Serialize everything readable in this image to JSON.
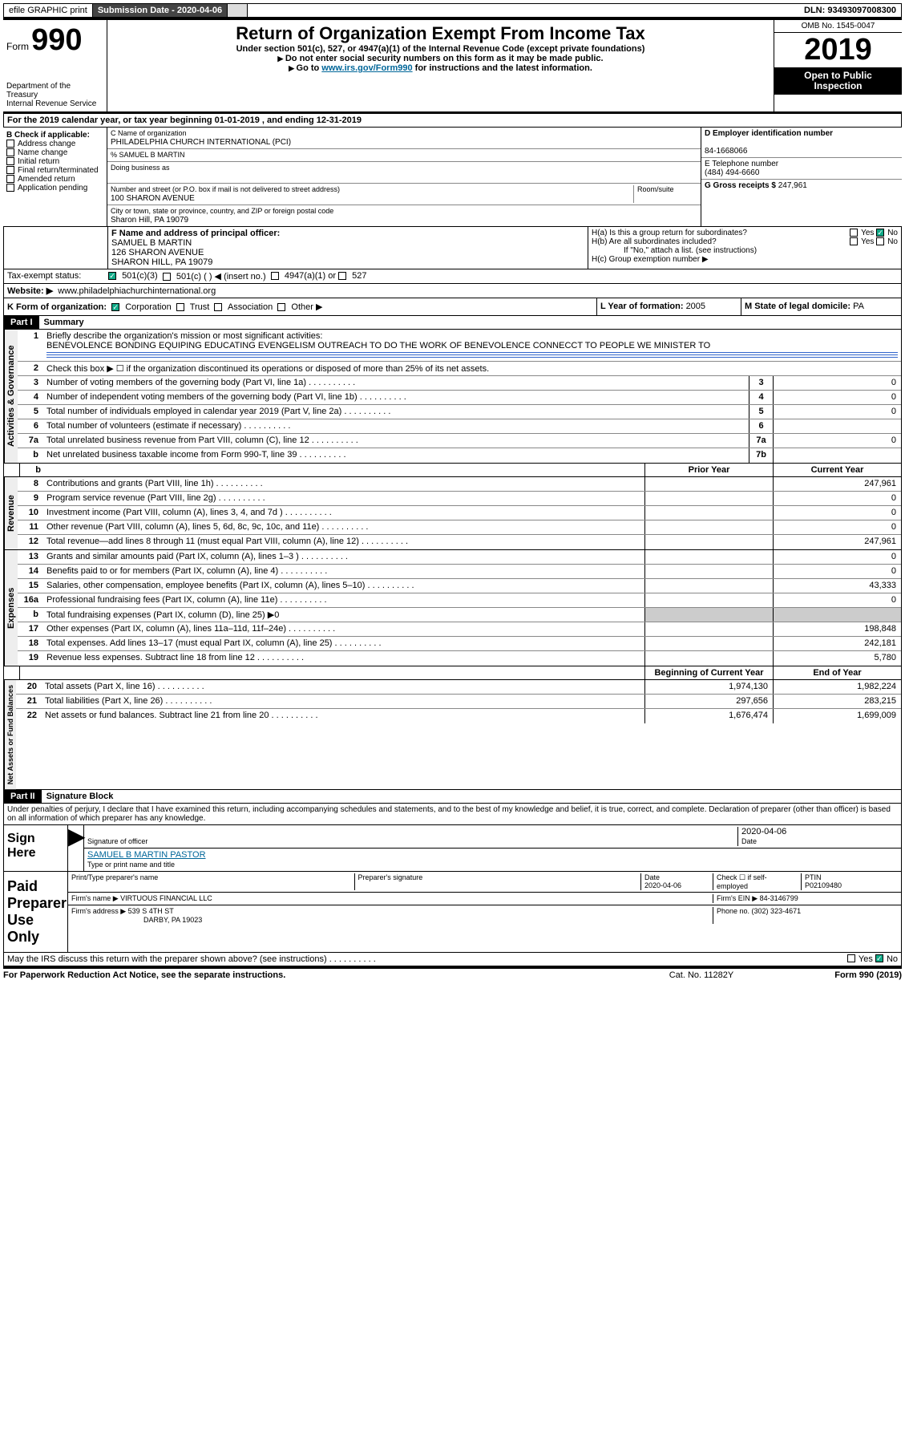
{
  "topbar": {
    "efile": "efile GRAPHIC print",
    "subLabel": "Submission Date - 2020-04-06",
    "dln": "DLN: 93493097008300"
  },
  "header": {
    "formWord": "Form",
    "formNum": "990",
    "dept": "Department of the Treasury\nInternal Revenue Service",
    "title": "Return of Organization Exempt From Income Tax",
    "sub1": "Under section 501(c), 527, or 4947(a)(1) of the Internal Revenue Code (except private foundations)",
    "sub2": "Do not enter social security numbers on this form as it may be made public.",
    "sub3pre": "Go to ",
    "sub3link": "www.irs.gov/Form990",
    "sub3post": " for instructions and the latest information.",
    "omb": "OMB No. 1545-0047",
    "year": "2019",
    "inspect": "Open to Public Inspection"
  },
  "A": {
    "text": "For the 2019 calendar year, or tax year beginning 01-01-2019   , and ending 12-31-2019"
  },
  "B": {
    "label": "B Check if applicable:",
    "opts": [
      "Address change",
      "Name change",
      "Initial return",
      "Final return/terminated",
      "Amended return",
      "Application pending"
    ]
  },
  "C": {
    "nameLabel": "C Name of organization",
    "name": "PHILADELPHIA CHURCH INTERNATIONAL (PCI)",
    "careOfLabel": "% SAMUEL B MARTIN",
    "dbaLabel": "Doing business as",
    "addrLabel": "Number and street (or P.O. box if mail is not delivered to street address)",
    "roomLabel": "Room/suite",
    "addr": "100 SHARON AVENUE",
    "cityLabel": "City or town, state or province, country, and ZIP or foreign postal code",
    "city": "Sharon Hill, PA  19079"
  },
  "D": {
    "label": "D Employer identification number",
    "value": "84-1668066"
  },
  "E": {
    "label": "E Telephone number",
    "value": "(484) 494-6660"
  },
  "G": {
    "label": "G Gross receipts $ ",
    "value": "247,961"
  },
  "F": {
    "label": "F  Name and address of principal officer:",
    "name": "SAMUEL B MARTIN",
    "addr1": "126 SHARON AVENUE",
    "addr2": "SHARON HILL, PA  19079"
  },
  "H": {
    "a": "H(a)  Is this a group return for subordinates?",
    "b": "H(b)  Are all subordinates included?",
    "bNote": "If \"No,\" attach a list. (see instructions)",
    "c": "H(c)  Group exemption number ▶",
    "yes": "Yes",
    "no": "No"
  },
  "I": {
    "label": "Tax-exempt status:",
    "opts": [
      "501(c)(3)",
      "501(c) (  ) ◀ (insert no.)",
      "4947(a)(1) or",
      "527"
    ]
  },
  "J": {
    "label": "Website: ▶",
    "value": "www.philadelphiachurchinternational.org"
  },
  "K": {
    "label": "K Form of organization:",
    "opts": [
      "Corporation",
      "Trust",
      "Association",
      "Other ▶"
    ]
  },
  "L": {
    "label": "L Year of formation: ",
    "value": "2005"
  },
  "M": {
    "label": "M State of legal domicile: ",
    "value": "PA"
  },
  "part1": {
    "hdr": "Part I",
    "title": "Summary"
  },
  "summary": {
    "q1": "Briefly describe the organization's mission or most significant activities:",
    "mission": "BENEVOLENCE BONDING EQUIPING EDUCATING EVENGELISM OUTREACH TO DO THE WORK OF BENEVOLENCE CONNECCT TO PEOPLE WE MINISTER TO",
    "q2": "Check this box ▶ ☐  if the organization discontinued its operations or disposed of more than 25% of its net assets.",
    "lines": [
      {
        "n": "3",
        "d": "Number of voting members of the governing body (Part VI, line 1a)",
        "box": "3",
        "v": "0"
      },
      {
        "n": "4",
        "d": "Number of independent voting members of the governing body (Part VI, line 1b)",
        "box": "4",
        "v": "0"
      },
      {
        "n": "5",
        "d": "Total number of individuals employed in calendar year 2019 (Part V, line 2a)",
        "box": "5",
        "v": "0"
      },
      {
        "n": "6",
        "d": "Total number of volunteers (estimate if necessary)",
        "box": "6",
        "v": ""
      },
      {
        "n": "7a",
        "d": "Total unrelated business revenue from Part VIII, column (C), line 12",
        "box": "7a",
        "v": "0"
      },
      {
        "n": "b",
        "d": "Net unrelated business taxable income from Form 990-T, line 39",
        "box": "7b",
        "v": ""
      }
    ],
    "colPrior": "Prior Year",
    "colCurrent": "Current Year",
    "rev": [
      {
        "n": "8",
        "d": "Contributions and grants (Part VIII, line 1h)",
        "p": "",
        "c": "247,961"
      },
      {
        "n": "9",
        "d": "Program service revenue (Part VIII, line 2g)",
        "p": "",
        "c": "0"
      },
      {
        "n": "10",
        "d": "Investment income (Part VIII, column (A), lines 3, 4, and 7d )",
        "p": "",
        "c": "0"
      },
      {
        "n": "11",
        "d": "Other revenue (Part VIII, column (A), lines 5, 6d, 8c, 9c, 10c, and 11e)",
        "p": "",
        "c": "0"
      },
      {
        "n": "12",
        "d": "Total revenue—add lines 8 through 11 (must equal Part VIII, column (A), line 12)",
        "p": "",
        "c": "247,961"
      }
    ],
    "exp": [
      {
        "n": "13",
        "d": "Grants and similar amounts paid (Part IX, column (A), lines 1–3 )",
        "p": "",
        "c": "0"
      },
      {
        "n": "14",
        "d": "Benefits paid to or for members (Part IX, column (A), line 4)",
        "p": "",
        "c": "0"
      },
      {
        "n": "15",
        "d": "Salaries, other compensation, employee benefits (Part IX, column (A), lines 5–10)",
        "p": "",
        "c": "43,333"
      },
      {
        "n": "16a",
        "d": "Professional fundraising fees (Part IX, column (A), line 11e)",
        "p": "",
        "c": "0"
      },
      {
        "n": "b",
        "d": "Total fundraising expenses (Part IX, column (D), line 25) ▶0",
        "shade": true
      },
      {
        "n": "17",
        "d": "Other expenses (Part IX, column (A), lines 11a–11d, 11f–24e)",
        "p": "",
        "c": "198,848"
      },
      {
        "n": "18",
        "d": "Total expenses. Add lines 13–17 (must equal Part IX, column (A), line 25)",
        "p": "",
        "c": "242,181"
      },
      {
        "n": "19",
        "d": "Revenue less expenses. Subtract line 18 from line 12",
        "p": "",
        "c": "5,780"
      }
    ],
    "colBeg": "Beginning of Current Year",
    "colEnd": "End of Year",
    "net": [
      {
        "n": "20",
        "d": "Total assets (Part X, line 16)",
        "p": "1,974,130",
        "c": "1,982,224"
      },
      {
        "n": "21",
        "d": "Total liabilities (Part X, line 26)",
        "p": "297,656",
        "c": "283,215"
      },
      {
        "n": "22",
        "d": "Net assets or fund balances. Subtract line 21 from line 20",
        "p": "1,676,474",
        "c": "1,699,009"
      }
    ],
    "sideGov": "Activities & Governance",
    "sideRev": "Revenue",
    "sideExp": "Expenses",
    "sideNet": "Net Assets or Fund Balances"
  },
  "part2": {
    "hdr": "Part II",
    "title": "Signature Block"
  },
  "sig": {
    "jurat": "Under penalties of perjury, I declare that I have examined this return, including accompanying schedules and statements, and to the best of my knowledge and belief, it is true, correct, and complete. Declaration of preparer (other than officer) is based on all information of which preparer has any knowledge.",
    "signHere": "Sign Here",
    "sigOfficer": "Signature of officer",
    "date": "2020-04-06",
    "dateLabel": "Date",
    "printed": "SAMUEL B MARTIN PASTOR",
    "printedLabel": "Type or print name and title",
    "paid": "Paid Preparer Use Only",
    "ppName": "Print/Type preparer's name",
    "ppSig": "Preparer's signature",
    "ppDate": "Date",
    "ppDateVal": "2020-04-06",
    "ppCheck": "Check ☐  if self-employed",
    "ptin": "PTIN",
    "ptinVal": "P02109480",
    "firmName": "Firm's name    ▶",
    "firmNameVal": "VIRTUOUS FINANCIAL LLC",
    "firmEin": "Firm's EIN ▶",
    "firmEinVal": "84-3146799",
    "firmAddr": "Firm's address ▶",
    "firmAddrVal": "539 S 4TH ST",
    "firmAddr2": "DARBY, PA  19023",
    "phone": "Phone no. ",
    "phoneVal": "(302) 323-4671",
    "mayIRS": "May the IRS discuss this return with the preparer shown above? (see instructions)"
  },
  "footer": {
    "left": "For Paperwork Reduction Act Notice, see the separate instructions.",
    "mid": "Cat. No. 11282Y",
    "right": "Form 990 (2019)"
  }
}
